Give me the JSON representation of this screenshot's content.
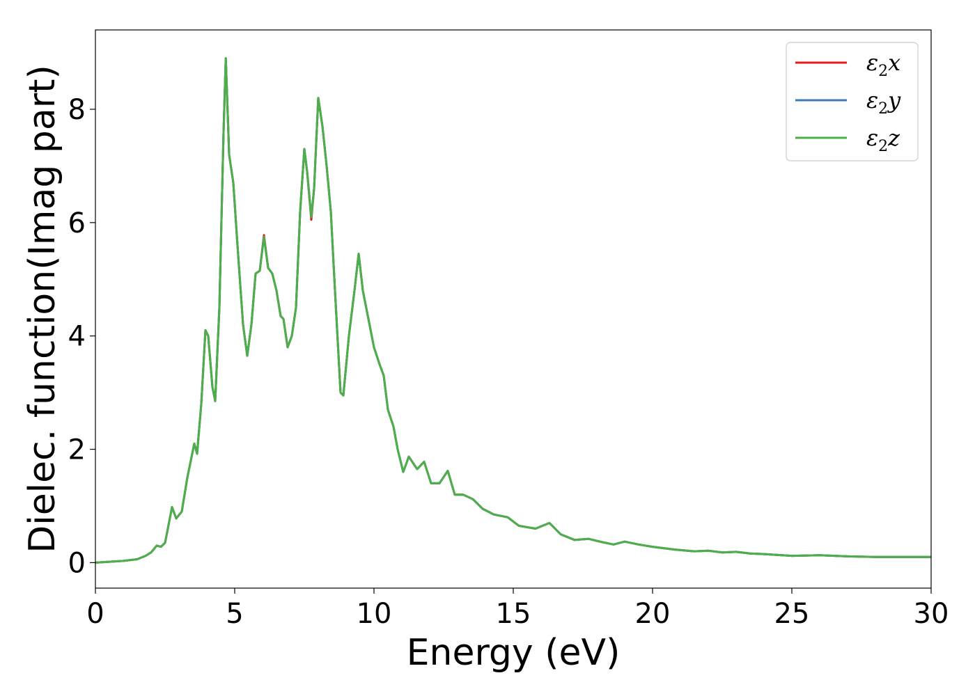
{
  "chart_data": {
    "type": "line",
    "title": "",
    "xlabel": "Energy (eV)",
    "ylabel": "Dielec. function(Imag part)",
    "xlim": [
      0,
      30
    ],
    "ylim": [
      -0.45,
      9.4
    ],
    "xticks": [
      0,
      5,
      10,
      15,
      20,
      25,
      30
    ],
    "yticks": [
      0,
      2,
      4,
      6,
      8
    ],
    "grid": false,
    "legend_position": "top-right",
    "series": [
      {
        "name": "ε2x",
        "legend_base": "ε",
        "legend_sub": "2",
        "legend_tail": "x",
        "color": "#e41a1c",
        "points": [
          [
            0,
            0.0
          ],
          [
            1,
            0.03
          ],
          [
            1.5,
            0.06
          ],
          [
            1.8,
            0.12
          ],
          [
            2.0,
            0.18
          ],
          [
            2.2,
            0.3
          ],
          [
            2.35,
            0.28
          ],
          [
            2.5,
            0.35
          ],
          [
            2.6,
            0.6
          ],
          [
            2.75,
            0.98
          ],
          [
            2.9,
            0.78
          ],
          [
            3.1,
            0.9
          ],
          [
            3.3,
            1.5
          ],
          [
            3.55,
            2.1
          ],
          [
            3.65,
            1.92
          ],
          [
            3.8,
            2.8
          ],
          [
            3.95,
            4.1
          ],
          [
            4.05,
            4.0
          ],
          [
            4.2,
            3.1
          ],
          [
            4.3,
            2.85
          ],
          [
            4.45,
            4.5
          ],
          [
            4.6,
            7.6
          ],
          [
            4.68,
            8.9
          ],
          [
            4.8,
            7.2
          ],
          [
            4.95,
            6.7
          ],
          [
            5.1,
            5.6
          ],
          [
            5.3,
            4.2
          ],
          [
            5.45,
            3.65
          ],
          [
            5.6,
            4.2
          ],
          [
            5.75,
            5.1
          ],
          [
            5.9,
            5.15
          ],
          [
            6.05,
            5.78
          ],
          [
            6.2,
            5.2
          ],
          [
            6.35,
            5.1
          ],
          [
            6.5,
            4.8
          ],
          [
            6.65,
            4.35
          ],
          [
            6.75,
            4.3
          ],
          [
            6.9,
            3.8
          ],
          [
            7.05,
            4.0
          ],
          [
            7.2,
            4.5
          ],
          [
            7.35,
            6.2
          ],
          [
            7.5,
            7.3
          ],
          [
            7.6,
            6.9
          ],
          [
            7.75,
            6.05
          ],
          [
            7.85,
            6.6
          ],
          [
            8.0,
            8.2
          ],
          [
            8.15,
            7.7
          ],
          [
            8.3,
            7.0
          ],
          [
            8.45,
            6.2
          ],
          [
            8.6,
            4.8
          ],
          [
            8.8,
            3.0
          ],
          [
            8.9,
            2.95
          ],
          [
            9.1,
            4.0
          ],
          [
            9.3,
            4.8
          ],
          [
            9.45,
            5.45
          ],
          [
            9.6,
            4.8
          ],
          [
            9.8,
            4.3
          ],
          [
            10.0,
            3.8
          ],
          [
            10.2,
            3.5
          ],
          [
            10.35,
            3.3
          ],
          [
            10.5,
            2.7
          ],
          [
            10.7,
            2.4
          ],
          [
            10.85,
            2.0
          ],
          [
            11.05,
            1.6
          ],
          [
            11.25,
            1.87
          ],
          [
            11.55,
            1.65
          ],
          [
            11.8,
            1.78
          ],
          [
            12.05,
            1.4
          ],
          [
            12.35,
            1.4
          ],
          [
            12.65,
            1.62
          ],
          [
            12.9,
            1.2
          ],
          [
            13.2,
            1.2
          ],
          [
            13.55,
            1.12
          ],
          [
            13.9,
            0.95
          ],
          [
            14.3,
            0.85
          ],
          [
            14.8,
            0.8
          ],
          [
            15.2,
            0.65
          ],
          [
            15.8,
            0.6
          ],
          [
            16.3,
            0.7
          ],
          [
            16.7,
            0.5
          ],
          [
            17.2,
            0.4
          ],
          [
            17.7,
            0.42
          ],
          [
            18.2,
            0.36
          ],
          [
            18.6,
            0.32
          ],
          [
            19.0,
            0.37
          ],
          [
            19.5,
            0.32
          ],
          [
            20.0,
            0.28
          ],
          [
            20.8,
            0.23
          ],
          [
            21.5,
            0.2
          ],
          [
            22.0,
            0.21
          ],
          [
            22.5,
            0.18
          ],
          [
            23.0,
            0.19
          ],
          [
            23.5,
            0.16
          ],
          [
            24.0,
            0.15
          ],
          [
            25.0,
            0.12
          ],
          [
            26.0,
            0.13
          ],
          [
            27.0,
            0.11
          ],
          [
            28.0,
            0.1
          ],
          [
            29.0,
            0.1
          ],
          [
            30.0,
            0.1
          ]
        ]
      },
      {
        "name": "ε2y",
        "legend_base": "ε",
        "legend_sub": "2",
        "legend_tail": "y",
        "color": "#377eb8",
        "points": [
          [
            0,
            0.0
          ],
          [
            1,
            0.03
          ],
          [
            1.5,
            0.06
          ],
          [
            1.8,
            0.12
          ],
          [
            2.0,
            0.18
          ],
          [
            2.2,
            0.3
          ],
          [
            2.35,
            0.28
          ],
          [
            2.5,
            0.35
          ],
          [
            2.6,
            0.6
          ],
          [
            2.75,
            0.98
          ],
          [
            2.9,
            0.78
          ],
          [
            3.1,
            0.9
          ],
          [
            3.3,
            1.5
          ],
          [
            3.55,
            2.1
          ],
          [
            3.65,
            1.92
          ],
          [
            3.8,
            2.8
          ],
          [
            3.95,
            4.1
          ],
          [
            4.05,
            4.0
          ],
          [
            4.2,
            3.1
          ],
          [
            4.3,
            2.85
          ],
          [
            4.45,
            4.5
          ],
          [
            4.6,
            7.6
          ],
          [
            4.68,
            8.9
          ],
          [
            4.8,
            7.2
          ],
          [
            4.95,
            6.7
          ],
          [
            5.1,
            5.6
          ],
          [
            5.3,
            4.2
          ],
          [
            5.45,
            3.65
          ],
          [
            5.6,
            4.2
          ],
          [
            5.75,
            5.1
          ],
          [
            5.9,
            5.15
          ],
          [
            6.05,
            5.75
          ],
          [
            6.2,
            5.2
          ],
          [
            6.35,
            5.1
          ],
          [
            6.5,
            4.8
          ],
          [
            6.65,
            4.35
          ],
          [
            6.75,
            4.3
          ],
          [
            6.9,
            3.8
          ],
          [
            7.05,
            4.0
          ],
          [
            7.2,
            4.5
          ],
          [
            7.35,
            6.2
          ],
          [
            7.5,
            7.3
          ],
          [
            7.6,
            6.9
          ],
          [
            7.75,
            6.1
          ],
          [
            7.85,
            6.6
          ],
          [
            8.0,
            8.2
          ],
          [
            8.15,
            7.7
          ],
          [
            8.3,
            7.0
          ],
          [
            8.45,
            6.2
          ],
          [
            8.6,
            4.8
          ],
          [
            8.8,
            3.0
          ],
          [
            8.9,
            2.95
          ],
          [
            9.1,
            4.0
          ],
          [
            9.3,
            4.8
          ],
          [
            9.45,
            5.45
          ],
          [
            9.6,
            4.8
          ],
          [
            9.8,
            4.3
          ],
          [
            10.0,
            3.8
          ],
          [
            10.2,
            3.5
          ],
          [
            10.35,
            3.3
          ],
          [
            10.5,
            2.7
          ],
          [
            10.7,
            2.4
          ],
          [
            10.85,
            2.0
          ],
          [
            11.05,
            1.6
          ],
          [
            11.25,
            1.87
          ],
          [
            11.55,
            1.65
          ],
          [
            11.8,
            1.78
          ],
          [
            12.05,
            1.4
          ],
          [
            12.35,
            1.4
          ],
          [
            12.65,
            1.62
          ],
          [
            12.9,
            1.2
          ],
          [
            13.2,
            1.2
          ],
          [
            13.55,
            1.12
          ],
          [
            13.9,
            0.95
          ],
          [
            14.3,
            0.85
          ],
          [
            14.8,
            0.8
          ],
          [
            15.2,
            0.65
          ],
          [
            15.8,
            0.6
          ],
          [
            16.3,
            0.7
          ],
          [
            16.7,
            0.5
          ],
          [
            17.2,
            0.4
          ],
          [
            17.7,
            0.42
          ],
          [
            18.2,
            0.36
          ],
          [
            18.6,
            0.32
          ],
          [
            19.0,
            0.37
          ],
          [
            19.5,
            0.32
          ],
          [
            20.0,
            0.28
          ],
          [
            20.8,
            0.23
          ],
          [
            21.5,
            0.2
          ],
          [
            22.0,
            0.21
          ],
          [
            22.5,
            0.18
          ],
          [
            23.0,
            0.19
          ],
          [
            23.5,
            0.16
          ],
          [
            24.0,
            0.15
          ],
          [
            25.0,
            0.12
          ],
          [
            26.0,
            0.13
          ],
          [
            27.0,
            0.11
          ],
          [
            28.0,
            0.1
          ],
          [
            29.0,
            0.1
          ],
          [
            30.0,
            0.1
          ]
        ]
      },
      {
        "name": "ε2z",
        "legend_base": "ε",
        "legend_sub": "2",
        "legend_tail": "z",
        "color": "#4daf4a",
        "points": [
          [
            0,
            0.0
          ],
          [
            1,
            0.03
          ],
          [
            1.5,
            0.06
          ],
          [
            1.8,
            0.12
          ],
          [
            2.0,
            0.18
          ],
          [
            2.2,
            0.3
          ],
          [
            2.35,
            0.28
          ],
          [
            2.5,
            0.35
          ],
          [
            2.6,
            0.6
          ],
          [
            2.75,
            0.98
          ],
          [
            2.9,
            0.78
          ],
          [
            3.1,
            0.9
          ],
          [
            3.3,
            1.5
          ],
          [
            3.55,
            2.1
          ],
          [
            3.65,
            1.92
          ],
          [
            3.8,
            2.8
          ],
          [
            3.95,
            4.1
          ],
          [
            4.05,
            4.0
          ],
          [
            4.2,
            3.1
          ],
          [
            4.3,
            2.85
          ],
          [
            4.45,
            4.5
          ],
          [
            4.6,
            7.6
          ],
          [
            4.68,
            8.9
          ],
          [
            4.8,
            7.2
          ],
          [
            4.95,
            6.7
          ],
          [
            5.1,
            5.6
          ],
          [
            5.3,
            4.2
          ],
          [
            5.45,
            3.65
          ],
          [
            5.6,
            4.2
          ],
          [
            5.75,
            5.1
          ],
          [
            5.9,
            5.15
          ],
          [
            6.05,
            5.75
          ],
          [
            6.2,
            5.2
          ],
          [
            6.35,
            5.1
          ],
          [
            6.5,
            4.8
          ],
          [
            6.65,
            4.35
          ],
          [
            6.75,
            4.3
          ],
          [
            6.9,
            3.8
          ],
          [
            7.05,
            4.0
          ],
          [
            7.2,
            4.5
          ],
          [
            7.35,
            6.2
          ],
          [
            7.5,
            7.3
          ],
          [
            7.6,
            6.9
          ],
          [
            7.75,
            6.1
          ],
          [
            7.85,
            6.6
          ],
          [
            8.0,
            8.2
          ],
          [
            8.15,
            7.7
          ],
          [
            8.3,
            7.0
          ],
          [
            8.45,
            6.2
          ],
          [
            8.6,
            4.8
          ],
          [
            8.8,
            3.0
          ],
          [
            8.9,
            2.95
          ],
          [
            9.1,
            4.0
          ],
          [
            9.3,
            4.8
          ],
          [
            9.45,
            5.45
          ],
          [
            9.6,
            4.8
          ],
          [
            9.8,
            4.3
          ],
          [
            10.0,
            3.8
          ],
          [
            10.2,
            3.5
          ],
          [
            10.35,
            3.3
          ],
          [
            10.5,
            2.7
          ],
          [
            10.7,
            2.4
          ],
          [
            10.85,
            2.0
          ],
          [
            11.05,
            1.6
          ],
          [
            11.25,
            1.87
          ],
          [
            11.55,
            1.65
          ],
          [
            11.8,
            1.78
          ],
          [
            12.05,
            1.4
          ],
          [
            12.35,
            1.4
          ],
          [
            12.65,
            1.62
          ],
          [
            12.9,
            1.2
          ],
          [
            13.2,
            1.2
          ],
          [
            13.55,
            1.12
          ],
          [
            13.9,
            0.95
          ],
          [
            14.3,
            0.85
          ],
          [
            14.8,
            0.8
          ],
          [
            15.2,
            0.65
          ],
          [
            15.8,
            0.6
          ],
          [
            16.3,
            0.7
          ],
          [
            16.7,
            0.5
          ],
          [
            17.2,
            0.4
          ],
          [
            17.7,
            0.42
          ],
          [
            18.2,
            0.36
          ],
          [
            18.6,
            0.32
          ],
          [
            19.0,
            0.37
          ],
          [
            19.5,
            0.32
          ],
          [
            20.0,
            0.28
          ],
          [
            20.8,
            0.23
          ],
          [
            21.5,
            0.2
          ],
          [
            22.0,
            0.21
          ],
          [
            22.5,
            0.18
          ],
          [
            23.0,
            0.19
          ],
          [
            23.5,
            0.16
          ],
          [
            24.0,
            0.15
          ],
          [
            25.0,
            0.12
          ],
          [
            26.0,
            0.13
          ],
          [
            27.0,
            0.11
          ],
          [
            28.0,
            0.1
          ],
          [
            29.0,
            0.1
          ],
          [
            30.0,
            0.1
          ]
        ]
      }
    ]
  }
}
